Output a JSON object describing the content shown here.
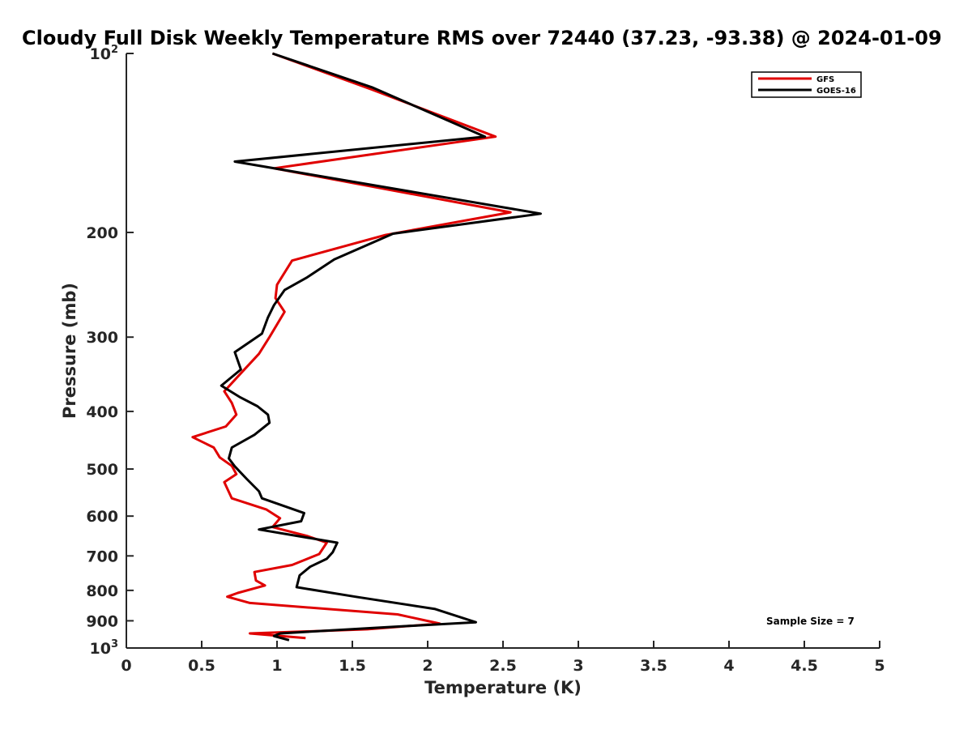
{
  "chart_data": {
    "type": "line",
    "title": "Cloudy Full Disk Weekly Temperature RMS over 72440 (37.23, -93.38) @ 2024-01-09",
    "xlabel": "Temperature (K)",
    "ylabel": "Pressure (mb)",
    "xlim": [
      0,
      5
    ],
    "ylim": [
      1000,
      100
    ],
    "y_scale": "log",
    "y_reversed": true,
    "x_ticks": [
      0,
      0.5,
      1,
      1.5,
      2,
      2.5,
      3,
      3.5,
      4,
      4.5,
      5
    ],
    "x_tick_labels": [
      "0",
      "0.5",
      "1",
      "1.5",
      "2",
      "2.5",
      "3",
      "3.5",
      "4",
      "4.5",
      "5"
    ],
    "y_ticks": [
      {
        "value": 100,
        "label": "10",
        "sup": "2"
      },
      {
        "value": 200,
        "label": "200",
        "sup": ""
      },
      {
        "value": 300,
        "label": "300",
        "sup": ""
      },
      {
        "value": 400,
        "label": "400",
        "sup": ""
      },
      {
        "value": 500,
        "label": "500",
        "sup": ""
      },
      {
        "value": 600,
        "label": "600",
        "sup": ""
      },
      {
        "value": 700,
        "label": "700",
        "sup": ""
      },
      {
        "value": 800,
        "label": "800",
        "sup": ""
      },
      {
        "value": 900,
        "label": "900",
        "sup": ""
      },
      {
        "value": 1000,
        "label": "10",
        "sup": "3"
      }
    ],
    "grid": false,
    "legend_position": "top-right",
    "annotation": "Sample Size = 7",
    "series": [
      {
        "name": "GFS",
        "color": "#e00000",
        "points": [
          [
            0.97,
            100
          ],
          [
            1.63,
            115
          ],
          [
            2.45,
            138
          ],
          [
            0.98,
            156
          ],
          [
            2.55,
            185
          ],
          [
            1.72,
            202
          ],
          [
            1.1,
            223
          ],
          [
            1.0,
            245
          ],
          [
            0.99,
            258
          ],
          [
            1.05,
            272
          ],
          [
            0.95,
            300
          ],
          [
            0.88,
            320
          ],
          [
            0.76,
            345
          ],
          [
            0.65,
            370
          ],
          [
            0.7,
            387
          ],
          [
            0.73,
            405
          ],
          [
            0.66,
            424
          ],
          [
            0.44,
            442
          ],
          [
            0.58,
            460
          ],
          [
            0.62,
            478
          ],
          [
            0.7,
            494
          ],
          [
            0.73,
            510
          ],
          [
            0.65,
            526
          ],
          [
            0.7,
            560
          ],
          [
            0.93,
            585
          ],
          [
            1.02,
            605
          ],
          [
            0.97,
            626
          ],
          [
            1.2,
            648
          ],
          [
            1.33,
            665
          ],
          [
            1.28,
            695
          ],
          [
            1.1,
            725
          ],
          [
            0.85,
            745
          ],
          [
            0.86,
            770
          ],
          [
            0.92,
            785
          ],
          [
            0.74,
            808
          ],
          [
            0.67,
            820
          ],
          [
            0.82,
            840
          ],
          [
            1.8,
            878
          ],
          [
            2.08,
            910
          ],
          [
            1.6,
            930
          ],
          [
            0.82,
            945
          ],
          [
            1.19,
            962
          ]
        ]
      },
      {
        "name": "GOES-16",
        "color": "#000000",
        "points": [
          [
            0.97,
            100
          ],
          [
            1.63,
            114
          ],
          [
            2.38,
            138
          ],
          [
            0.72,
            152
          ],
          [
            2.75,
            186
          ],
          [
            1.77,
            201
          ],
          [
            1.38,
            222
          ],
          [
            1.2,
            238
          ],
          [
            1.05,
            250
          ],
          [
            0.98,
            265
          ],
          [
            0.94,
            278
          ],
          [
            0.9,
            296
          ],
          [
            0.72,
            318
          ],
          [
            0.76,
            340
          ],
          [
            0.63,
            362
          ],
          [
            0.75,
            378
          ],
          [
            0.87,
            392
          ],
          [
            0.94,
            405
          ],
          [
            0.95,
            418
          ],
          [
            0.85,
            438
          ],
          [
            0.7,
            460
          ],
          [
            0.68,
            480
          ],
          [
            0.72,
            495
          ],
          [
            0.8,
            520
          ],
          [
            0.88,
            545
          ],
          [
            0.9,
            560
          ],
          [
            1.18,
            593
          ],
          [
            1.16,
            612
          ],
          [
            0.88,
            632
          ],
          [
            1.4,
            665
          ],
          [
            1.37,
            690
          ],
          [
            1.33,
            708
          ],
          [
            1.22,
            730
          ],
          [
            1.15,
            755
          ],
          [
            1.13,
            790
          ],
          [
            1.52,
            820
          ],
          [
            2.05,
            860
          ],
          [
            2.32,
            905
          ],
          [
            1.65,
            925
          ],
          [
            1.02,
            945
          ],
          [
            0.98,
            955
          ],
          [
            1.08,
            970
          ]
        ]
      }
    ]
  }
}
